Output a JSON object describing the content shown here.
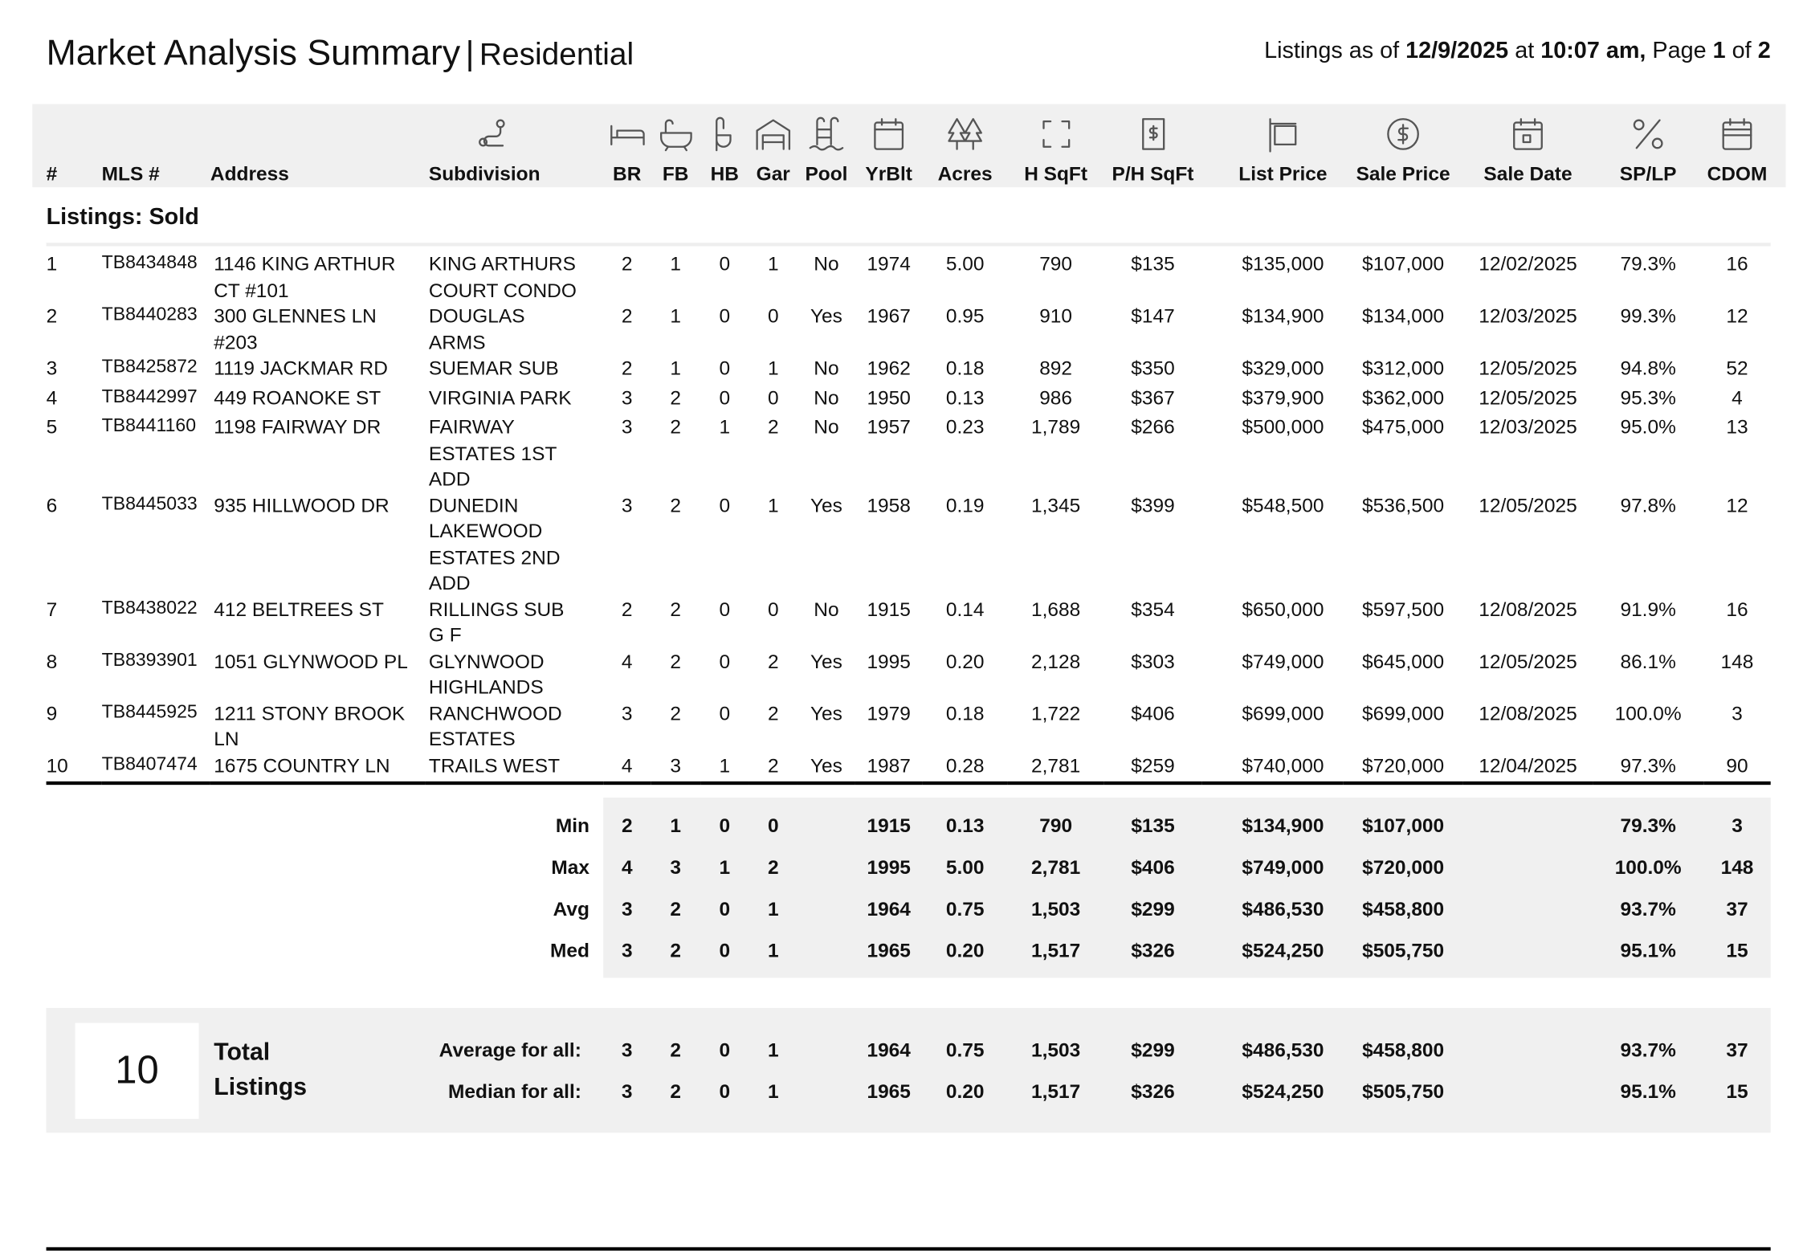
{
  "header": {
    "title": "Market Analysis Summary",
    "separator": "|",
    "subtitle": "Residential",
    "as_of": {
      "label": "Listings as of",
      "date": "12/9/2025",
      "at": "at",
      "time": "10:07 am,",
      "page_label": "Page",
      "page": "1",
      "of": "of",
      "pages": "2"
    }
  },
  "columns": [
    "#",
    "MLS #",
    "Address",
    "Subdivision",
    "BR",
    "FB",
    "HB",
    "Gar",
    "Pool",
    "YrBlt",
    "Acres",
    "H SqFt",
    "P/H SqFt",
    "List Price",
    "Sale Price",
    "Sale Date",
    "SP/LP",
    "CDOM"
  ],
  "section": "Listings: Sold",
  "rows": [
    [
      "1",
      "TB8434848",
      "1146 KING ARTHUR CT #101",
      "KING ARTHURS COURT CONDO",
      "2",
      "1",
      "0",
      "1",
      "No",
      "1974",
      "5.00",
      "790",
      "$135",
      "$135,000",
      "$107,000",
      "12/02/2025",
      "79.3%",
      "16"
    ],
    [
      "2",
      "TB8440283",
      "300 GLENNES LN #203",
      "DOUGLAS ARMS",
      "2",
      "1",
      "0",
      "0",
      "Yes",
      "1967",
      "0.95",
      "910",
      "$147",
      "$134,900",
      "$134,000",
      "12/03/2025",
      "99.3%",
      "12"
    ],
    [
      "3",
      "TB8425872",
      "1119 JACKMAR RD",
      "SUEMAR SUB",
      "2",
      "1",
      "0",
      "1",
      "No",
      "1962",
      "0.18",
      "892",
      "$350",
      "$329,000",
      "$312,000",
      "12/05/2025",
      "94.8%",
      "52"
    ],
    [
      "4",
      "TB8442997",
      "449 ROANOKE ST",
      "VIRGINIA PARK",
      "3",
      "2",
      "0",
      "0",
      "No",
      "1950",
      "0.13",
      "986",
      "$367",
      "$379,900",
      "$362,000",
      "12/05/2025",
      "95.3%",
      "4"
    ],
    [
      "5",
      "TB8441160",
      "1198 FAIRWAY DR",
      "FAIRWAY ESTATES 1ST ADD",
      "3",
      "2",
      "1",
      "2",
      "No",
      "1957",
      "0.23",
      "1,789",
      "$266",
      "$500,000",
      "$475,000",
      "12/03/2025",
      "95.0%",
      "13"
    ],
    [
      "6",
      "TB8445033",
      "935 HILLWOOD DR",
      "DUNEDIN LAKEWOOD ESTATES 2ND ADD",
      "3",
      "2",
      "0",
      "1",
      "Yes",
      "1958",
      "0.19",
      "1,345",
      "$399",
      "$548,500",
      "$536,500",
      "12/05/2025",
      "97.8%",
      "12"
    ],
    [
      "7",
      "TB8438022",
      "412 BELTREES ST",
      "RILLINGS SUB G F",
      "2",
      "2",
      "0",
      "0",
      "No",
      "1915",
      "0.14",
      "1,688",
      "$354",
      "$650,000",
      "$597,500",
      "12/08/2025",
      "91.9%",
      "16"
    ],
    [
      "8",
      "TB8393901",
      "1051 GLYNWOOD PL",
      "GLYNWOOD HIGHLANDS",
      "4",
      "2",
      "0",
      "2",
      "Yes",
      "1995",
      "0.20",
      "2,128",
      "$303",
      "$749,000",
      "$645,000",
      "12/05/2025",
      "86.1%",
      "148"
    ],
    [
      "9",
      "TB8445925",
      "1211 STONY BROOK LN",
      "RANCHWOOD ESTATES",
      "3",
      "2",
      "0",
      "2",
      "Yes",
      "1979",
      "0.18",
      "1,722",
      "$406",
      "$699,000",
      "$699,000",
      "12/08/2025",
      "100.0%",
      "3"
    ],
    [
      "10",
      "TB8407474",
      "1675 COUNTRY LN",
      "TRAILS WEST",
      "4",
      "3",
      "1",
      "2",
      "Yes",
      "1987",
      "0.28",
      "2,781",
      "$259",
      "$740,000",
      "$720,000",
      "12/04/2025",
      "97.3%",
      "90"
    ]
  ],
  "stats": [
    {
      "label": "Min",
      "values": [
        "2",
        "1",
        "0",
        "0",
        null,
        "1915",
        "0.13",
        "790",
        "$135",
        "$134,900",
        "$107,000",
        null,
        "79.3%",
        "3"
      ]
    },
    {
      "label": "Max",
      "values": [
        "4",
        "3",
        "1",
        "2",
        null,
        "1995",
        "5.00",
        "2,781",
        "$406",
        "$749,000",
        "$720,000",
        null,
        "100.0%",
        "148"
      ]
    },
    {
      "label": "Avg",
      "values": [
        "3",
        "2",
        "0",
        "1",
        null,
        "1964",
        "0.75",
        "1,503",
        "$299",
        "$486,530",
        "$458,800",
        null,
        "93.7%",
        "37"
      ]
    },
    {
      "label": "Med",
      "values": [
        "3",
        "2",
        "0",
        "1",
        null,
        "1965",
        "0.20",
        "1,517",
        "$326",
        "$524,250",
        "$505,750",
        null,
        "95.1%",
        "15"
      ]
    }
  ],
  "totals": {
    "count": "10",
    "label": "Total Listings",
    "rows": [
      {
        "label": "Average for all:",
        "values": [
          "3",
          "2",
          "0",
          "1",
          null,
          "1964",
          "0.75",
          "1,503",
          "$299",
          "$486,530",
          "$458,800",
          null,
          "93.7%",
          "37"
        ]
      },
      {
        "label": "Median for all:",
        "values": [
          "3",
          "2",
          "0",
          "1",
          null,
          "1965",
          "0.20",
          "1,517",
          "$326",
          "$524,250",
          "$505,750",
          null,
          "95.1%",
          "15"
        ]
      }
    ]
  }
}
